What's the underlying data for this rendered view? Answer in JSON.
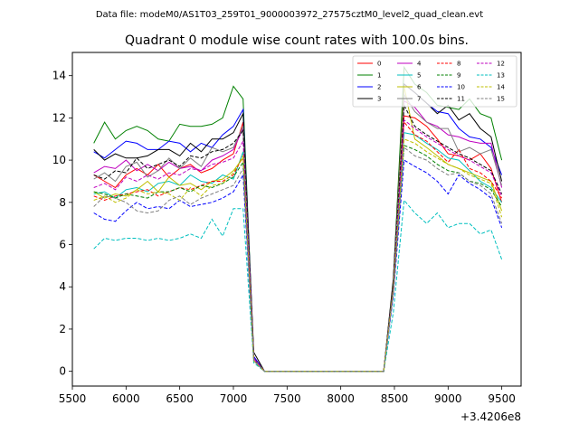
{
  "figure": {
    "suptitle": "Data file: modeM0/AS1T03_259T01_9000003972_27575cztM0_level2_quad_clean.evt"
  },
  "chart_data": {
    "type": "line",
    "title": "Quadrant 0 module wise count rates with 100.0s bins.",
    "xlabel": "",
    "ylabel": "",
    "x_offset_label": "+3.4206e8",
    "xlim": [
      5500,
      9680
    ],
    "ylim": [
      -0.7,
      15.1
    ],
    "xticks": [
      5500,
      6000,
      6500,
      7000,
      7500,
      8000,
      8500,
      9000,
      9500
    ],
    "yticks": [
      0,
      2,
      4,
      6,
      8,
      10,
      12,
      14
    ],
    "legend_position": "top-right",
    "x": [
      5700,
      5800,
      5900,
      6000,
      6100,
      6200,
      6300,
      6400,
      6500,
      6600,
      6700,
      6800,
      6900,
      7000,
      7090,
      7190,
      7290,
      7400,
      7500,
      7600,
      7700,
      7800,
      7900,
      8000,
      8100,
      8200,
      8300,
      8400,
      8490,
      8590,
      8690,
      8800,
      8900,
      9000,
      9100,
      9200,
      9300,
      9400,
      9500
    ],
    "series": [
      {
        "name": "0",
        "color": "#ff0000",
        "dash": "solid",
        "values": [
          9.3,
          9.0,
          8.7,
          9.3,
          9.6,
          9.3,
          9.8,
          9.2,
          9.6,
          9.8,
          9.4,
          9.6,
          10.0,
          10.3,
          11.8,
          0.7,
          0.0,
          0.0,
          0.0,
          0.0,
          0.0,
          0.0,
          0.0,
          0.0,
          0.0,
          0.0,
          0.0,
          0.0,
          4.1,
          12.1,
          12.0,
          11.6,
          11.0,
          10.3,
          10.2,
          10.0,
          10.3,
          9.6,
          8.0
        ]
      },
      {
        "name": "1",
        "color": "#008000",
        "dash": "solid",
        "values": [
          10.8,
          11.8,
          11.0,
          11.4,
          11.6,
          11.4,
          11.0,
          10.9,
          11.7,
          11.6,
          11.6,
          11.7,
          12.0,
          13.5,
          12.9,
          0.6,
          0.0,
          0.0,
          0.0,
          0.0,
          0.0,
          0.0,
          0.0,
          0.0,
          0.0,
          0.0,
          0.0,
          0.0,
          4.3,
          14.4,
          13.6,
          13.2,
          12.6,
          12.5,
          12.4,
          12.9,
          12.2,
          12.0,
          10.0
        ]
      },
      {
        "name": "2",
        "color": "#0000ff",
        "dash": "solid",
        "values": [
          10.4,
          10.1,
          10.5,
          10.9,
          10.8,
          10.5,
          10.5,
          10.9,
          10.8,
          10.4,
          10.8,
          10.6,
          11.2,
          11.6,
          12.4,
          0.7,
          0.0,
          0.0,
          0.0,
          0.0,
          0.0,
          0.0,
          0.0,
          0.0,
          0.0,
          0.0,
          0.0,
          0.0,
          4.2,
          13.6,
          13.2,
          12.7,
          12.3,
          12.2,
          11.5,
          11.1,
          11.0,
          10.6,
          9.3
        ]
      },
      {
        "name": "3",
        "color": "#000000",
        "dash": "solid",
        "values": [
          10.5,
          10.0,
          10.3,
          10.1,
          10.1,
          10.2,
          10.5,
          10.5,
          10.2,
          10.8,
          10.4,
          11.0,
          11.0,
          11.3,
          12.2,
          0.9,
          0.0,
          0.0,
          0.0,
          0.0,
          0.0,
          0.0,
          0.0,
          0.0,
          0.0,
          0.0,
          0.0,
          0.0,
          4.4,
          13.6,
          13.2,
          12.7,
          12.2,
          12.6,
          11.9,
          12.2,
          11.5,
          11.1,
          9.0
        ]
      },
      {
        "name": "4",
        "color": "#bf00bf",
        "dash": "solid",
        "values": [
          9.4,
          9.7,
          9.6,
          10.0,
          9.5,
          9.8,
          9.5,
          9.9,
          9.6,
          9.7,
          9.5,
          10.0,
          10.2,
          10.5,
          11.5,
          0.6,
          0.0,
          0.0,
          0.0,
          0.0,
          0.0,
          0.0,
          0.0,
          0.0,
          0.0,
          0.0,
          0.0,
          0.0,
          4.0,
          12.8,
          12.5,
          11.8,
          11.6,
          11.2,
          11.1,
          10.9,
          10.8,
          10.8,
          8.7
        ]
      },
      {
        "name": "5",
        "color": "#00bfbf",
        "dash": "solid",
        "values": [
          8.4,
          8.5,
          8.2,
          8.6,
          8.7,
          8.5,
          8.9,
          9.0,
          8.8,
          9.3,
          9.0,
          8.9,
          9.3,
          9.1,
          10.4,
          0.6,
          0.0,
          0.0,
          0.0,
          0.0,
          0.0,
          0.0,
          0.0,
          0.0,
          0.0,
          0.0,
          0.0,
          0.0,
          4.0,
          11.3,
          11.2,
          10.8,
          10.5,
          10.1,
          10.0,
          9.5,
          9.0,
          8.7,
          8.0
        ]
      },
      {
        "name": "6",
        "color": "#bfbf00",
        "dash": "solid",
        "values": [
          8.5,
          8.2,
          8.4,
          8.3,
          8.6,
          9.0,
          8.5,
          9.2,
          8.8,
          8.9,
          8.6,
          9.0,
          9.1,
          9.5,
          10.1,
          0.6,
          0.0,
          0.0,
          0.0,
          0.0,
          0.0,
          0.0,
          0.0,
          0.0,
          0.0,
          0.0,
          0.0,
          0.0,
          4.0,
          13.5,
          11.0,
          10.6,
          10.2,
          9.8,
          9.6,
          9.4,
          9.2,
          9.0,
          7.6
        ]
      },
      {
        "name": "7",
        "color": "#808080",
        "dash": "solid",
        "values": [
          9.1,
          9.4,
          9.0,
          9.7,
          9.9,
          9.2,
          9.5,
          10.1,
          9.6,
          10.1,
          9.7,
          10.6,
          10.4,
          10.6,
          11.6,
          0.6,
          0.0,
          0.0,
          0.0,
          0.0,
          0.0,
          0.0,
          0.0,
          0.0,
          0.0,
          0.0,
          0.0,
          0.0,
          4.1,
          13.1,
          12.3,
          11.8,
          11.5,
          11.5,
          10.4,
          10.6,
          10.3,
          10.5,
          8.8
        ]
      },
      {
        "name": "8",
        "color": "#ff0000",
        "dash": "dashed",
        "values": [
          8.3,
          8.1,
          8.3,
          8.4,
          8.5,
          8.6,
          8.3,
          8.5,
          8.7,
          8.6,
          8.8,
          9.0,
          9.0,
          9.3,
          10.2,
          0.6,
          0.0,
          0.0,
          0.0,
          0.0,
          0.0,
          0.0,
          0.0,
          0.0,
          0.0,
          0.0,
          0.0,
          0.0,
          3.9,
          11.8,
          11.2,
          10.9,
          10.4,
          9.9,
          10.5,
          9.6,
          9.4,
          9.0,
          8.2
        ]
      },
      {
        "name": "9",
        "color": "#008000",
        "dash": "dashed",
        "values": [
          8.5,
          8.4,
          8.2,
          8.4,
          8.3,
          8.2,
          8.5,
          8.5,
          8.7,
          8.5,
          8.8,
          8.7,
          8.9,
          9.2,
          9.9,
          0.5,
          0.0,
          0.0,
          0.0,
          0.0,
          0.0,
          0.0,
          0.0,
          0.0,
          0.0,
          0.0,
          0.0,
          0.0,
          3.8,
          10.7,
          10.5,
          10.2,
          9.8,
          9.5,
          9.4,
          9.0,
          8.9,
          8.6,
          7.8
        ]
      },
      {
        "name": "10",
        "color": "#0000ff",
        "dash": "dashed",
        "values": [
          7.5,
          7.2,
          7.1,
          7.6,
          8.0,
          7.7,
          7.8,
          7.7,
          8.1,
          7.8,
          7.9,
          8.0,
          8.2,
          8.5,
          9.3,
          0.5,
          0.0,
          0.0,
          0.0,
          0.0,
          0.0,
          0.0,
          0.0,
          0.0,
          0.0,
          0.0,
          0.0,
          0.0,
          3.6,
          10.0,
          9.7,
          9.4,
          9.0,
          8.4,
          9.3,
          8.9,
          8.6,
          8.2,
          6.8
        ]
      },
      {
        "name": "11",
        "color": "#000000",
        "dash": "dashed",
        "values": [
          9.3,
          9.1,
          9.5,
          9.4,
          10.1,
          9.6,
          9.8,
          10.0,
          9.7,
          10.2,
          10.1,
          10.4,
          10.5,
          10.8,
          11.4,
          0.6,
          0.0,
          0.0,
          0.0,
          0.0,
          0.0,
          0.0,
          0.0,
          0.0,
          0.0,
          0.0,
          0.0,
          0.0,
          4.1,
          12.6,
          11.6,
          11.2,
          10.9,
          10.6,
          10.3,
          10.1,
          9.8,
          9.5,
          8.4
        ]
      },
      {
        "name": "12",
        "color": "#bf00bf",
        "dash": "dashed",
        "values": [
          8.7,
          8.9,
          8.6,
          9.2,
          9.0,
          9.3,
          9.1,
          9.4,
          9.3,
          9.6,
          9.5,
          9.8,
          9.9,
          10.1,
          10.9,
          0.6,
          0.0,
          0.0,
          0.0,
          0.0,
          0.0,
          0.0,
          0.0,
          0.0,
          0.0,
          0.0,
          0.0,
          0.0,
          4.0,
          11.9,
          11.5,
          11.1,
          10.8,
          10.5,
          10.2,
          10.0,
          9.7,
          9.4,
          8.3
        ]
      },
      {
        "name": "13",
        "color": "#00bfbf",
        "dash": "dashed",
        "values": [
          5.8,
          6.3,
          6.2,
          6.3,
          6.3,
          6.2,
          6.3,
          6.2,
          6.3,
          6.5,
          6.3,
          7.2,
          6.4,
          7.7,
          7.7,
          0.4,
          0.0,
          0.0,
          0.0,
          0.0,
          0.0,
          0.0,
          0.0,
          0.0,
          0.0,
          0.0,
          0.0,
          0.0,
          2.8,
          8.1,
          7.5,
          7.0,
          7.5,
          6.8,
          7.0,
          7.0,
          6.5,
          6.7,
          5.3
        ]
      },
      {
        "name": "14",
        "color": "#bfbf00",
        "dash": "dashed",
        "values": [
          8.1,
          8.3,
          8.0,
          8.2,
          8.6,
          8.4,
          8.5,
          8.4,
          8.1,
          8.7,
          8.3,
          8.8,
          8.9,
          9.4,
          10.2,
          0.5,
          0.0,
          0.0,
          0.0,
          0.0,
          0.0,
          0.0,
          0.0,
          0.0,
          0.0,
          0.0,
          0.0,
          0.0,
          3.9,
          11.0,
          10.8,
          10.4,
          10.1,
          9.8,
          9.6,
          9.3,
          9.1,
          8.9,
          7.3
        ]
      },
      {
        "name": "15",
        "color": "#808080",
        "dash": "dashed",
        "values": [
          7.8,
          8.3,
          8.2,
          8.0,
          7.6,
          7.5,
          7.6,
          8.1,
          8.3,
          7.9,
          8.2,
          8.4,
          8.6,
          8.8,
          9.6,
          0.5,
          0.0,
          0.0,
          0.0,
          0.0,
          0.0,
          0.0,
          0.0,
          0.0,
          0.0,
          0.0,
          0.0,
          0.0,
          3.7,
          10.6,
          10.2,
          10.0,
          9.6,
          9.3,
          9.4,
          9.0,
          8.8,
          8.4,
          7.0
        ]
      }
    ]
  }
}
